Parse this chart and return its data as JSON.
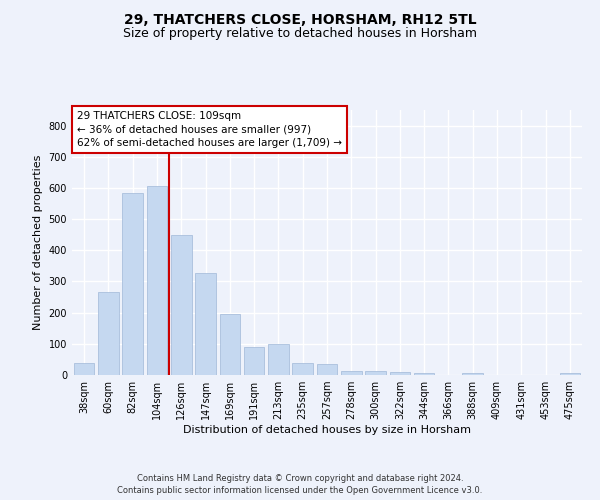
{
  "title": "29, THATCHERS CLOSE, HORSHAM, RH12 5TL",
  "subtitle": "Size of property relative to detached houses in Horsham",
  "xlabel": "Distribution of detached houses by size in Horsham",
  "ylabel": "Number of detached properties",
  "footer_line1": "Contains HM Land Registry data © Crown copyright and database right 2024.",
  "footer_line2": "Contains public sector information licensed under the Open Government Licence v3.0.",
  "categories": [
    "38sqm",
    "60sqm",
    "82sqm",
    "104sqm",
    "126sqm",
    "147sqm",
    "169sqm",
    "191sqm",
    "213sqm",
    "235sqm",
    "257sqm",
    "278sqm",
    "300sqm",
    "322sqm",
    "344sqm",
    "366sqm",
    "388sqm",
    "409sqm",
    "431sqm",
    "453sqm",
    "475sqm"
  ],
  "values": [
    38,
    265,
    585,
    607,
    450,
    327,
    197,
    90,
    101,
    40,
    35,
    12,
    13,
    10,
    8,
    0,
    8,
    0,
    0,
    0,
    5
  ],
  "bar_color": "#c5d8f0",
  "bar_edge_color": "#a0b8d8",
  "vline_x_index": 3,
  "vline_color": "#cc0000",
  "annotation_text": "29 THATCHERS CLOSE: 109sqm\n← 36% of detached houses are smaller (997)\n62% of semi-detached houses are larger (1,709) →",
  "annotation_box_color": "#ffffff",
  "annotation_box_edgecolor": "#cc0000",
  "ylim": [
    0,
    850
  ],
  "yticks": [
    0,
    100,
    200,
    300,
    400,
    500,
    600,
    700,
    800
  ],
  "background_color": "#eef2fb",
  "plot_background": "#eef2fb",
  "grid_color": "#ffffff",
  "title_fontsize": 10,
  "subtitle_fontsize": 9,
  "axis_label_fontsize": 8,
  "tick_fontsize": 7
}
